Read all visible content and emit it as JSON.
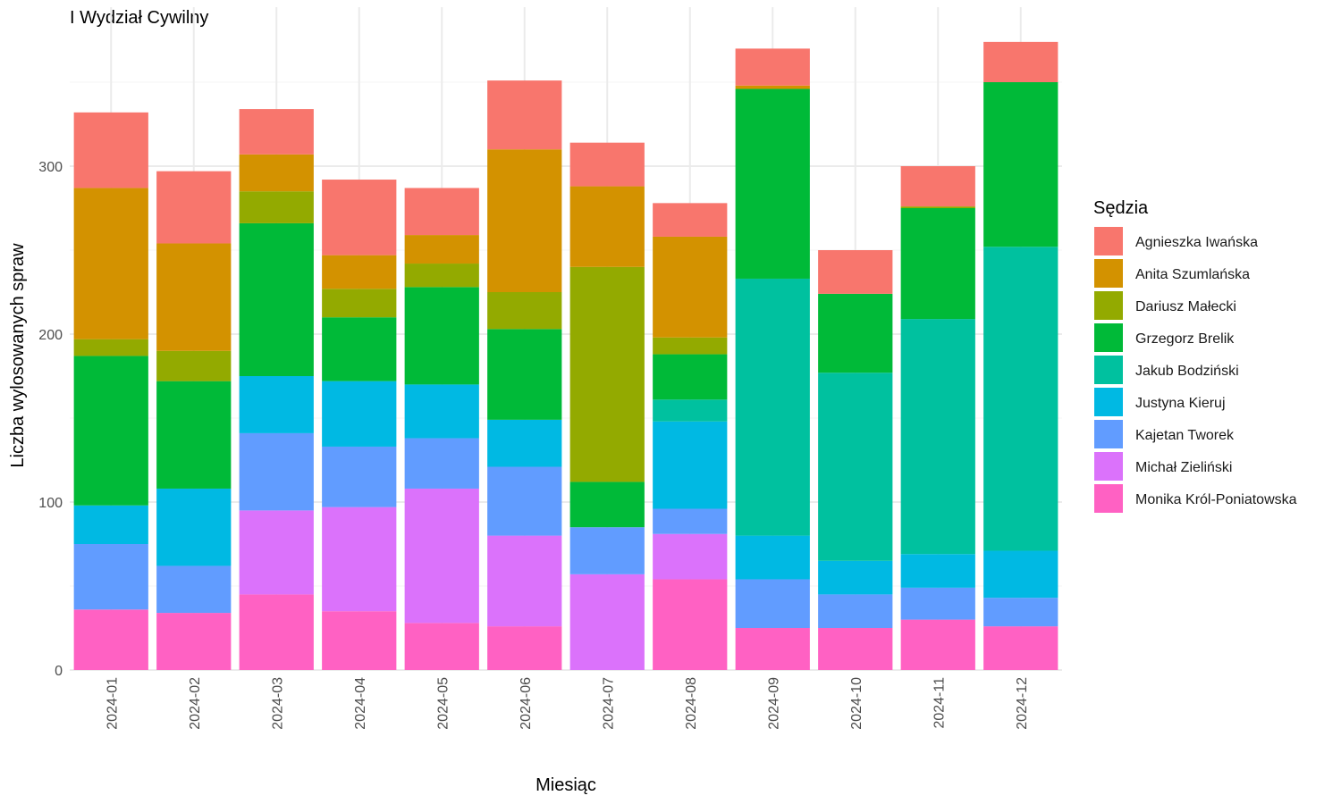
{
  "chart_data": {
    "type": "bar",
    "stacked": true,
    "title": "I Wydział Cywilny",
    "xlabel": "Miesiąc",
    "ylabel": "Liczba wylosowanych spraw",
    "ylim": [
      0,
      390
    ],
    "yticks": [
      0,
      100,
      200,
      300
    ],
    "grid": true,
    "legend": {
      "title": "Sędzia",
      "position": "right"
    },
    "categories": [
      "2024-01",
      "2024-02",
      "2024-03",
      "2024-04",
      "2024-05",
      "2024-06",
      "2024-07",
      "2024-08",
      "2024-09",
      "2024-10",
      "2024-11",
      "2024-12"
    ],
    "series": [
      {
        "name": "Monika Król-Poniatowska",
        "color": "#FF61C3",
        "values": [
          36,
          34,
          45,
          35,
          28,
          26,
          0,
          54,
          25,
          25,
          30,
          26
        ]
      },
      {
        "name": "Michał Zieliński",
        "color": "#DB72FB",
        "values": [
          0,
          0,
          50,
          62,
          80,
          54,
          57,
          27,
          0,
          0,
          0,
          0
        ]
      },
      {
        "name": "Kajetan Tworek",
        "color": "#619CFF",
        "values": [
          39,
          28,
          46,
          36,
          30,
          41,
          28,
          15,
          29,
          20,
          19,
          17
        ]
      },
      {
        "name": "Justyna Kieruj",
        "color": "#00B9E3",
        "values": [
          23,
          46,
          34,
          39,
          32,
          28,
          0,
          52,
          26,
          20,
          20,
          28
        ]
      },
      {
        "name": "Jakub Bodziński",
        "color": "#00C19F",
        "values": [
          0,
          0,
          0,
          0,
          0,
          0,
          0,
          13,
          153,
          112,
          140,
          181
        ]
      },
      {
        "name": "Grzegorz Brelik",
        "color": "#00BA38",
        "values": [
          89,
          64,
          91,
          38,
          58,
          54,
          27,
          27,
          113,
          47,
          66,
          98
        ]
      },
      {
        "name": "Dariusz Małecki",
        "color": "#93AA00",
        "values": [
          10,
          18,
          19,
          17,
          14,
          22,
          128,
          10,
          0,
          0,
          1,
          0
        ]
      },
      {
        "name": "Anita Szumlańska",
        "color": "#D39200",
        "values": [
          90,
          64,
          22,
          20,
          17,
          85,
          48,
          60,
          2,
          0,
          0,
          0
        ]
      },
      {
        "name": "Agnieszka Iwańska",
        "color": "#F8766D",
        "values": [
          45,
          43,
          27,
          45,
          28,
          41,
          26,
          20,
          22,
          26,
          24,
          24
        ]
      }
    ]
  }
}
